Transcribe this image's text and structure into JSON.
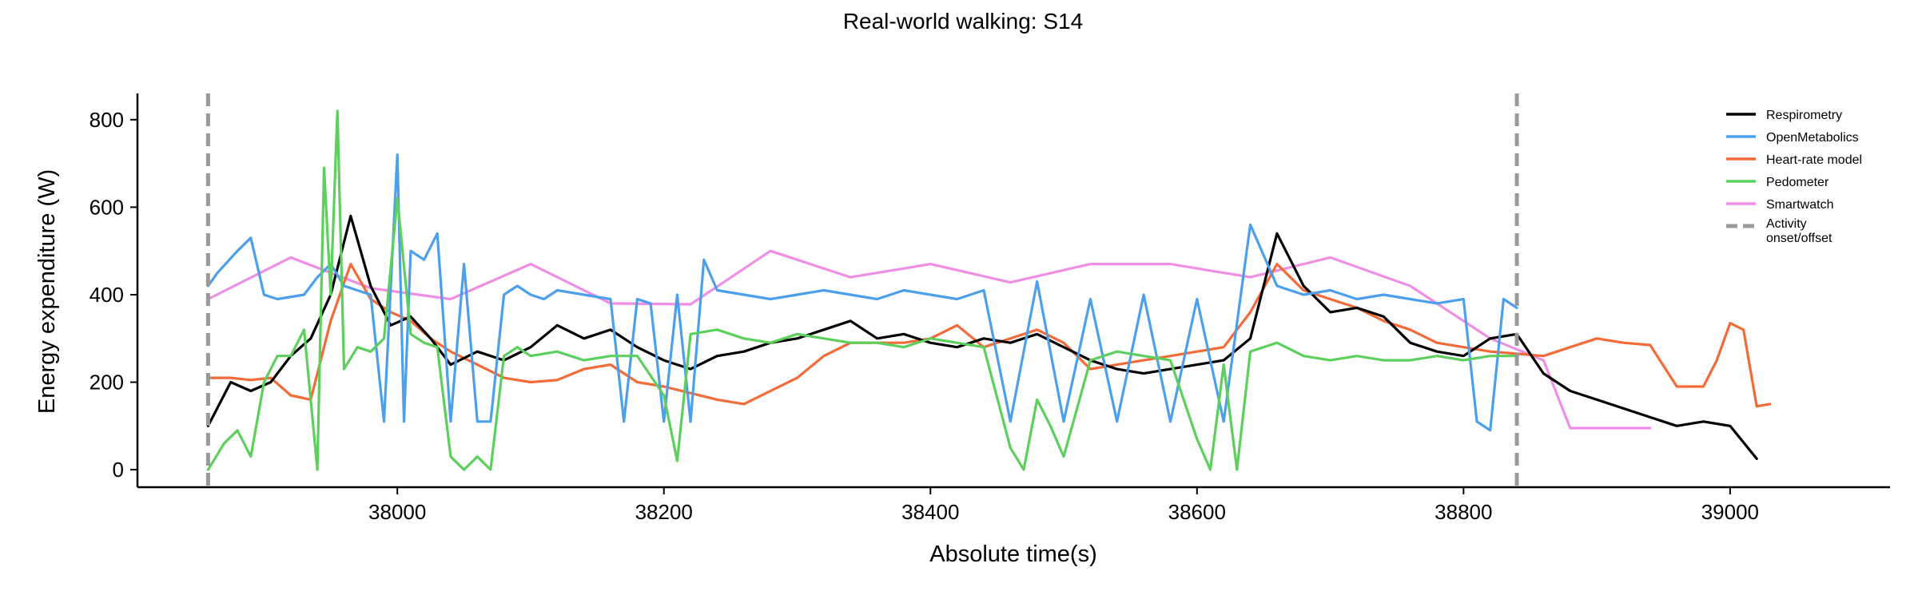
{
  "chart_data": {
    "type": "line",
    "title": "Real-world walking: S14",
    "xlabel": "Absolute time(s)",
    "ylabel": "Energy expenditure (W)",
    "xlim": [
      37805,
      39120
    ],
    "ylim": [
      -40,
      860
    ],
    "xticks": [
      38000,
      38200,
      38400,
      38600,
      38800,
      39000
    ],
    "yticks": [
      0,
      200,
      400,
      600,
      800
    ],
    "grid": false,
    "legend_position": "top-right",
    "legend": [
      {
        "label": "Respirometry",
        "color": "#000000",
        "style": "solid"
      },
      {
        "label": "OpenMetabolics",
        "color": "#4c9fea",
        "style": "solid"
      },
      {
        "label": "Heart-rate model",
        "color": "#f26b38",
        "style": "solid"
      },
      {
        "label": "Pedometer",
        "color": "#5ccf5c",
        "style": "solid"
      },
      {
        "label": "Smartwatch",
        "color": "#ee8ee4",
        "style": "solid"
      },
      {
        "label": "Activity\nonset/offset",
        "color": "#999999",
        "style": "dashed"
      }
    ],
    "vlines": [
      {
        "x": 37858,
        "series": "Activity onset/offset"
      },
      {
        "x": 38840,
        "series": "Activity onset/offset"
      }
    ],
    "series": [
      {
        "name": "Smartwatch",
        "color": "#ee8ee4",
        "x": [
          37858,
          37920,
          37980,
          38040,
          38100,
          38160,
          38220,
          38280,
          38340,
          38400,
          38460,
          38520,
          38580,
          38640,
          38700,
          38760,
          38820,
          38860,
          38880,
          38940
        ],
        "y": [
          390,
          485,
          415,
          390,
          470,
          380,
          378,
          500,
          440,
          470,
          428,
          470,
          470,
          440,
          485,
          420,
          300,
          250,
          95,
          95
        ]
      },
      {
        "name": "Heart-rate model",
        "color": "#f26b38",
        "x": [
          37858,
          37875,
          37890,
          37905,
          37920,
          37935,
          37950,
          37965,
          37980,
          37995,
          38010,
          38025,
          38040,
          38060,
          38080,
          38100,
          38120,
          38140,
          38160,
          38180,
          38200,
          38220,
          38240,
          38260,
          38280,
          38300,
          38320,
          38340,
          38360,
          38380,
          38400,
          38420,
          38440,
          38460,
          38480,
          38500,
          38520,
          38540,
          38560,
          38580,
          38600,
          38620,
          38640,
          38660,
          38680,
          38700,
          38720,
          38740,
          38760,
          38780,
          38800,
          38820,
          38840,
          38860,
          38880,
          38900,
          38920,
          38940,
          38960,
          38980,
          38990,
          39000,
          39010,
          39020,
          39030
        ],
        "y": [
          210,
          210,
          205,
          210,
          170,
          160,
          340,
          470,
          390,
          360,
          340,
          300,
          270,
          240,
          210,
          200,
          205,
          230,
          240,
          200,
          190,
          175,
          160,
          150,
          180,
          210,
          260,
          290,
          290,
          290,
          300,
          330,
          280,
          300,
          320,
          290,
          230,
          240,
          250,
          260,
          270,
          280,
          360,
          470,
          410,
          390,
          370,
          340,
          320,
          290,
          280,
          270,
          265,
          260,
          280,
          300,
          290,
          285,
          190,
          190,
          250,
          335,
          320,
          145,
          150
        ]
      },
      {
        "name": "Respirometry",
        "color": "#000000",
        "x": [
          37858,
          37875,
          37890,
          37905,
          37920,
          37935,
          37950,
          37965,
          37980,
          37995,
          38010,
          38025,
          38040,
          38060,
          38080,
          38100,
          38120,
          38140,
          38160,
          38180,
          38200,
          38220,
          38240,
          38260,
          38280,
          38300,
          38320,
          38340,
          38360,
          38380,
          38400,
          38420,
          38440,
          38460,
          38480,
          38500,
          38520,
          38540,
          38560,
          38580,
          38600,
          38620,
          38640,
          38660,
          38680,
          38700,
          38720,
          38740,
          38760,
          38780,
          38800,
          38820,
          38840,
          38860,
          38880,
          38900,
          38920,
          38940,
          38960,
          38980,
          39000,
          39020
        ],
        "y": [
          100,
          200,
          180,
          200,
          260,
          300,
          400,
          580,
          420,
          330,
          350,
          300,
          240,
          270,
          250,
          280,
          330,
          300,
          320,
          280,
          250,
          230,
          260,
          270,
          290,
          300,
          320,
          340,
          300,
          310,
          290,
          280,
          300,
          290,
          310,
          280,
          250,
          230,
          220,
          230,
          240,
          250,
          300,
          540,
          420,
          360,
          370,
          350,
          290,
          270,
          260,
          300,
          310,
          220,
          180,
          160,
          140,
          120,
          100,
          110,
          100,
          25
        ]
      },
      {
        "name": "OpenMetabolics",
        "color": "#4c9fea",
        "x": [
          37858,
          37865,
          37880,
          37890,
          37900,
          37910,
          37930,
          37940,
          37950,
          37960,
          37970,
          37980,
          37990,
          38000,
          38005,
          38010,
          38020,
          38030,
          38040,
          38050,
          38060,
          38070,
          38080,
          38090,
          38100,
          38110,
          38120,
          38140,
          38160,
          38170,
          38180,
          38190,
          38200,
          38210,
          38220,
          38230,
          38240,
          38260,
          38280,
          38300,
          38320,
          38340,
          38360,
          38380,
          38400,
          38420,
          38440,
          38460,
          38480,
          38500,
          38520,
          38540,
          38560,
          38580,
          38600,
          38620,
          38640,
          38660,
          38680,
          38700,
          38720,
          38740,
          38760,
          38780,
          38800,
          38810,
          38820,
          38830,
          38840
        ],
        "y": [
          420,
          450,
          500,
          530,
          400,
          390,
          400,
          440,
          470,
          420,
          410,
          400,
          110,
          720,
          110,
          500,
          480,
          540,
          110,
          470,
          110,
          110,
          400,
          420,
          400,
          390,
          410,
          400,
          390,
          110,
          390,
          380,
          110,
          400,
          110,
          480,
          410,
          400,
          390,
          400,
          410,
          400,
          390,
          410,
          400,
          390,
          410,
          110,
          430,
          110,
          390,
          110,
          400,
          110,
          390,
          110,
          560,
          420,
          400,
          410,
          390,
          400,
          390,
          380,
          390,
          110,
          90,
          390,
          370
        ]
      },
      {
        "name": "Pedometer",
        "color": "#5ccf5c",
        "x": [
          37858,
          37870,
          37880,
          37890,
          37900,
          37910,
          37920,
          37930,
          37940,
          37945,
          37950,
          37955,
          37960,
          37970,
          37980,
          37990,
          38000,
          38010,
          38020,
          38030,
          38040,
          38050,
          38060,
          38070,
          38080,
          38090,
          38100,
          38120,
          38140,
          38160,
          38180,
          38200,
          38210,
          38220,
          38240,
          38260,
          38280,
          38300,
          38320,
          38340,
          38360,
          38380,
          38400,
          38420,
          38440,
          38460,
          38470,
          38480,
          38490,
          38500,
          38520,
          38540,
          38560,
          38580,
          38600,
          38610,
          38620,
          38630,
          38640,
          38660,
          38680,
          38700,
          38720,
          38740,
          38760,
          38780,
          38800,
          38820,
          38840
        ],
        "y": [
          0,
          60,
          90,
          30,
          200,
          260,
          260,
          320,
          0,
          690,
          400,
          820,
          230,
          280,
          270,
          300,
          620,
          310,
          290,
          280,
          30,
          0,
          30,
          0,
          260,
          280,
          260,
          270,
          250,
          260,
          260,
          170,
          20,
          310,
          320,
          300,
          290,
          310,
          300,
          290,
          290,
          280,
          300,
          290,
          280,
          50,
          0,
          160,
          100,
          30,
          250,
          270,
          260,
          250,
          70,
          0,
          240,
          0,
          270,
          290,
          260,
          250,
          260,
          250,
          250,
          260,
          250,
          260,
          260
        ]
      }
    ]
  }
}
